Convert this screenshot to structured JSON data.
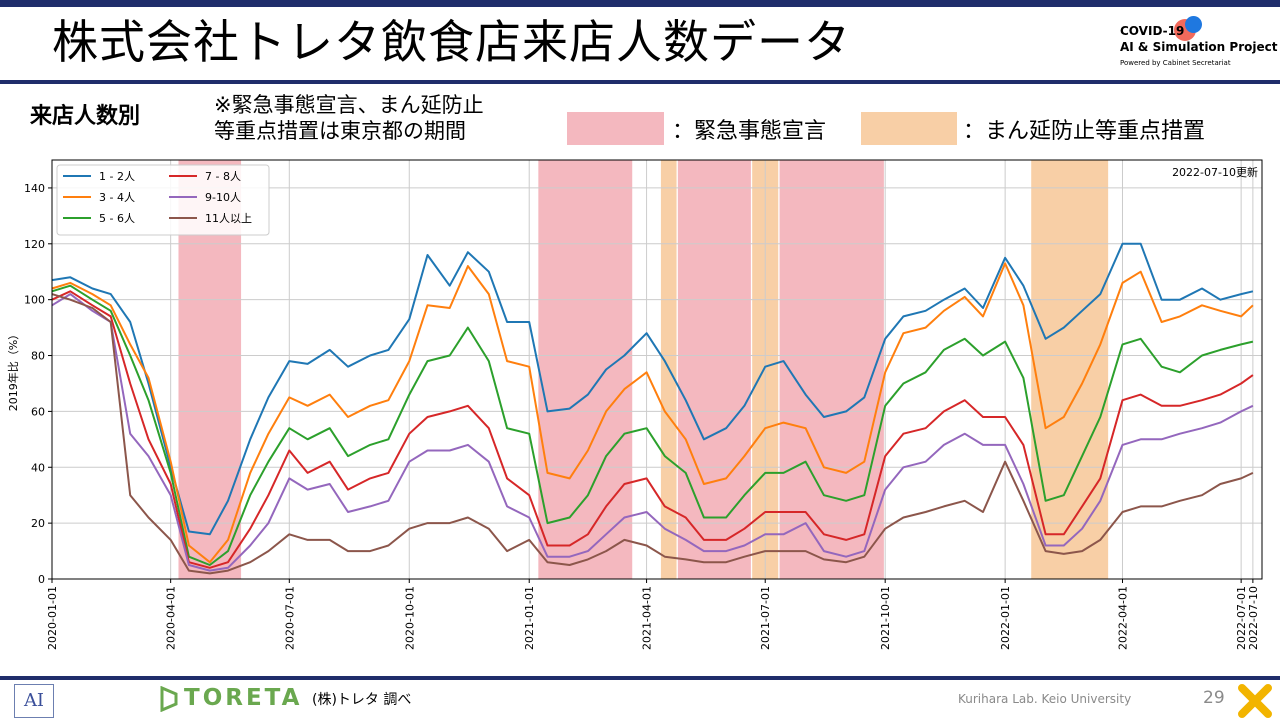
{
  "header": {
    "title": "株式会社トレタ飲食店来店人数データ",
    "logo_line1": "COVID-19",
    "logo_line2": "AI & Simulation Project",
    "logo_line3": "Powered by Cabinet Secretariat"
  },
  "subheader": {
    "section": "来店人数別",
    "note_line1": "※緊急事態宣言、まん延防止",
    "note_line2": "等重点措置は東京都の期間",
    "legend_red": "：緊急事態宣言",
    "legend_orange": "：まん延防止等重点措置"
  },
  "footer": {
    "lab_logo": "AI",
    "brand": "TORETA",
    "source": "(株)トレタ 調べ",
    "lab": "Kurihara Lab. Keio University",
    "page": "29"
  },
  "colors": {
    "emergency": "#f4b8bf",
    "semi_emergency": "#f8cfa6",
    "series": [
      "#1f77b4",
      "#ff7f0e",
      "#2ca02c",
      "#d62728",
      "#9467bd",
      "#8c564b"
    ]
  },
  "chart_data": {
    "type": "line",
    "ylabel": "2019年比（%）",
    "xlabel": "",
    "update_note": "2022-07-10更新",
    "ylim": [
      0,
      150
    ],
    "xlim": [
      "2020-01-01",
      "2022-07-17"
    ],
    "yticks": [
      0,
      20,
      40,
      60,
      80,
      100,
      120,
      140
    ],
    "xticks": [
      "2020-01-01",
      "2020-04-01",
      "2020-07-01",
      "2020-10-01",
      "2021-01-01",
      "2021-04-01",
      "2021-07-01",
      "2021-10-01",
      "2022-01-01",
      "2022-04-01",
      "2022-07-01",
      "2022-07-10"
    ],
    "grid": true,
    "legend_position": "top-left",
    "emergency_periods": [
      [
        "2020-04-07",
        "2020-05-25"
      ],
      [
        "2021-01-08",
        "2021-03-21"
      ],
      [
        "2021-04-25",
        "2021-06-20"
      ],
      [
        "2021-07-12",
        "2021-09-30"
      ]
    ],
    "semi_emergency_periods": [
      [
        "2021-04-12",
        "2021-04-24"
      ],
      [
        "2021-06-21",
        "2021-07-11"
      ],
      [
        "2022-01-21",
        "2022-03-21"
      ]
    ],
    "dates": [
      "2020-01-01",
      "2020-01-15",
      "2020-02-01",
      "2020-02-15",
      "2020-03-01",
      "2020-03-15",
      "2020-04-01",
      "2020-04-15",
      "2020-05-01",
      "2020-05-15",
      "2020-06-01",
      "2020-06-15",
      "2020-07-01",
      "2020-07-15",
      "2020-08-01",
      "2020-08-15",
      "2020-09-01",
      "2020-09-15",
      "2020-10-01",
      "2020-10-15",
      "2020-11-01",
      "2020-11-15",
      "2020-12-01",
      "2020-12-15",
      "2021-01-01",
      "2021-01-15",
      "2021-02-01",
      "2021-02-15",
      "2021-03-01",
      "2021-03-15",
      "2021-04-01",
      "2021-04-15",
      "2021-05-01",
      "2021-05-15",
      "2021-06-01",
      "2021-06-15",
      "2021-07-01",
      "2021-07-15",
      "2021-08-01",
      "2021-08-15",
      "2021-09-01",
      "2021-09-15",
      "2021-10-01",
      "2021-10-15",
      "2021-11-01",
      "2021-11-15",
      "2021-12-01",
      "2021-12-15",
      "2022-01-01",
      "2022-01-15",
      "2022-02-01",
      "2022-02-15",
      "2022-03-01",
      "2022-03-15",
      "2022-04-01",
      "2022-04-15",
      "2022-05-01",
      "2022-05-15",
      "2022-06-01",
      "2022-06-15",
      "2022-07-01",
      "2022-07-10"
    ],
    "series": [
      {
        "name": "1 - 2人",
        "values": [
          107,
          108,
          104,
          102,
          92,
          70,
          40,
          17,
          16,
          28,
          50,
          65,
          78,
          77,
          82,
          76,
          80,
          82,
          93,
          116,
          105,
          117,
          110,
          92,
          92,
          60,
          61,
          66,
          75,
          80,
          88,
          78,
          64,
          50,
          54,
          62,
          76,
          78,
          66,
          58,
          60,
          65,
          86,
          94,
          96,
          100,
          104,
          97,
          115,
          105,
          86,
          90,
          96,
          102,
          120,
          120,
          100,
          100,
          104,
          100,
          102,
          103
        ]
      },
      {
        "name": "3 - 4人",
        "values": [
          104,
          106,
          102,
          98,
          84,
          72,
          42,
          12,
          6,
          14,
          38,
          52,
          65,
          62,
          66,
          58,
          62,
          64,
          78,
          98,
          97,
          112,
          102,
          78,
          76,
          38,
          36,
          46,
          60,
          68,
          74,
          60,
          50,
          34,
          36,
          44,
          54,
          56,
          54,
          40,
          38,
          42,
          74,
          88,
          90,
          96,
          101,
          94,
          113,
          98,
          54,
          58,
          70,
          84,
          106,
          110,
          92,
          94,
          98,
          96,
          94,
          98
        ]
      },
      {
        "name": "5 - 6人",
        "values": [
          103,
          105,
          100,
          96,
          80,
          64,
          38,
          8,
          5,
          10,
          30,
          42,
          54,
          50,
          54,
          44,
          48,
          50,
          66,
          78,
          80,
          90,
          78,
          54,
          52,
          20,
          22,
          30,
          44,
          52,
          54,
          44,
          38,
          22,
          22,
          30,
          38,
          38,
          42,
          30,
          28,
          30,
          62,
          70,
          74,
          82,
          86,
          80,
          85,
          72,
          28,
          30,
          44,
          58,
          84,
          86,
          76,
          74,
          80,
          82,
          84,
          85
        ]
      },
      {
        "name": "7 - 8人",
        "values": [
          100,
          103,
          98,
          94,
          70,
          50,
          34,
          6,
          4,
          6,
          18,
          30,
          46,
          38,
          42,
          32,
          36,
          38,
          52,
          58,
          60,
          62,
          54,
          36,
          30,
          12,
          12,
          16,
          26,
          34,
          36,
          26,
          22,
          14,
          14,
          18,
          24,
          24,
          24,
          16,
          14,
          16,
          44,
          52,
          54,
          60,
          64,
          58,
          58,
          48,
          16,
          16,
          26,
          36,
          64,
          66,
          62,
          62,
          64,
          66,
          70,
          73
        ]
      },
      {
        "name": "9-10人",
        "values": [
          98,
          102,
          96,
          92,
          52,
          44,
          30,
          5,
          3,
          4,
          12,
          20,
          36,
          32,
          34,
          24,
          26,
          28,
          42,
          46,
          46,
          48,
          42,
          26,
          22,
          8,
          8,
          10,
          16,
          22,
          24,
          18,
          14,
          10,
          10,
          12,
          16,
          16,
          20,
          10,
          8,
          10,
          32,
          40,
          42,
          48,
          52,
          48,
          48,
          34,
          12,
          12,
          18,
          28,
          48,
          50,
          50,
          52,
          54,
          56,
          60,
          62
        ]
      },
      {
        "name": "11人以上",
        "values": [
          102,
          100,
          97,
          92,
          30,
          22,
          14,
          3,
          2,
          3,
          6,
          10,
          16,
          14,
          14,
          10,
          10,
          12,
          18,
          20,
          20,
          22,
          18,
          10,
          14,
          6,
          5,
          7,
          10,
          14,
          12,
          8,
          7,
          6,
          6,
          8,
          10,
          10,
          10,
          7,
          6,
          8,
          18,
          22,
          24,
          26,
          28,
          24,
          42,
          28,
          10,
          9,
          10,
          14,
          24,
          26,
          26,
          28,
          30,
          34,
          36,
          38
        ]
      }
    ]
  }
}
